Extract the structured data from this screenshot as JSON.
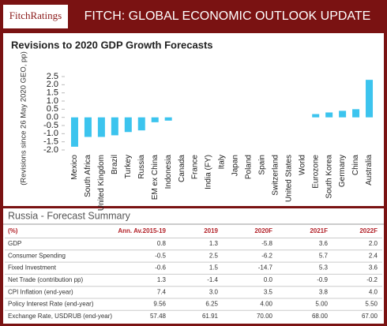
{
  "header": {
    "logo": "FitchRatings",
    "title": "FITCH: GLOBAL ECONOMIC OUTLOOK UPDATE"
  },
  "chart_data": {
    "type": "bar",
    "title": "Revisions to 2020 GDP Growth Forecasts",
    "y_label": "(Revisions since 26 May 2020 GEO, pp)",
    "categories": [
      "Mexico",
      "South Africa",
      "United Kingdom",
      "Brazil",
      "Turkey",
      "Russia",
      "EM ex China",
      "Indonesia",
      "Canada",
      "France",
      "India (FY)",
      "Italy",
      "Japan",
      "Poland",
      "Spain",
      "Switzerland",
      "United States",
      "World",
      "Eurozone",
      "South Korea",
      "Germany",
      "China",
      "Australia"
    ],
    "values": [
      -1.8,
      -1.2,
      -1.2,
      -1.1,
      -0.9,
      -0.8,
      -0.3,
      -0.2,
      0,
      0,
      0,
      0,
      0,
      0,
      0,
      0,
      0,
      0,
      0.2,
      0.3,
      0.4,
      0.5,
      2.3
    ],
    "color": "#3cc4ee",
    "ylim": [
      -2.0,
      2.5
    ],
    "yticks": [
      2.5,
      {
        "value": 2.0,
        "label": "2.0"
      },
      1.5,
      {
        "value": 1.0,
        "label": "1.0"
      },
      0.5,
      {
        "value": 0.0,
        "label": "0.0"
      },
      -0.5,
      {
        "value": -1.0,
        "label": "-1.0"
      },
      -1.5,
      {
        "value": -2.0,
        "label": "-2.0"
      }
    ],
    "grid": false
  },
  "table": {
    "title": "Russia  -  Forecast Summary",
    "columns": [
      "(%)",
      "Ann. Av.2015-19",
      "2019",
      "2020F",
      "2021F",
      "2022F"
    ],
    "rows": [
      [
        "GDP",
        "0.8",
        "1.3",
        "-5.8",
        "3.6",
        "2.0"
      ],
      [
        "Consumer Spending",
        "-0.5",
        "2.5",
        "-6.2",
        "5.7",
        "2.4"
      ],
      [
        "Fixed Investment",
        "-0.6",
        "1.5",
        "-14.7",
        "5.3",
        "3.6"
      ],
      [
        "Net Trade (contribution pp)",
        "1.3",
        "-1.4",
        "0.0",
        "-0.9",
        "-0.2"
      ],
      [
        "CPI Inflation (end-year)",
        "7.4",
        "3.0",
        "3.5",
        "3.8",
        "4.0"
      ],
      [
        "Policy Interest Rate (end-year)",
        "9.56",
        "6.25",
        "4.00",
        "5.00",
        "5.50"
      ],
      [
        "Exchange Rate, USDRUB (end-year)",
        "57.48",
        "61.91",
        "70.00",
        "68.00",
        "67.00"
      ]
    ]
  }
}
